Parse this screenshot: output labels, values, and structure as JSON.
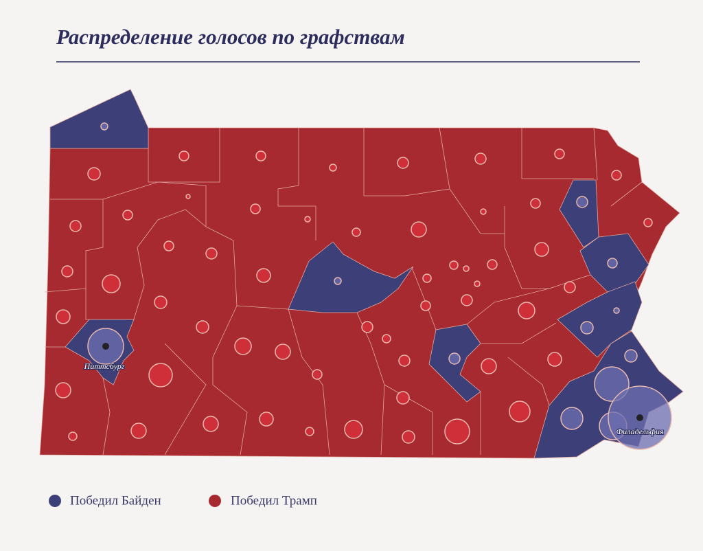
{
  "title": "Распределение голосов по графствам",
  "legend": [
    {
      "label": "Победил Байден",
      "color": "#3d3f78"
    },
    {
      "label": "Победил Трамп",
      "color": "#a72a30"
    }
  ],
  "cities": [
    "Питтсбург",
    "Филадельфия"
  ]
}
